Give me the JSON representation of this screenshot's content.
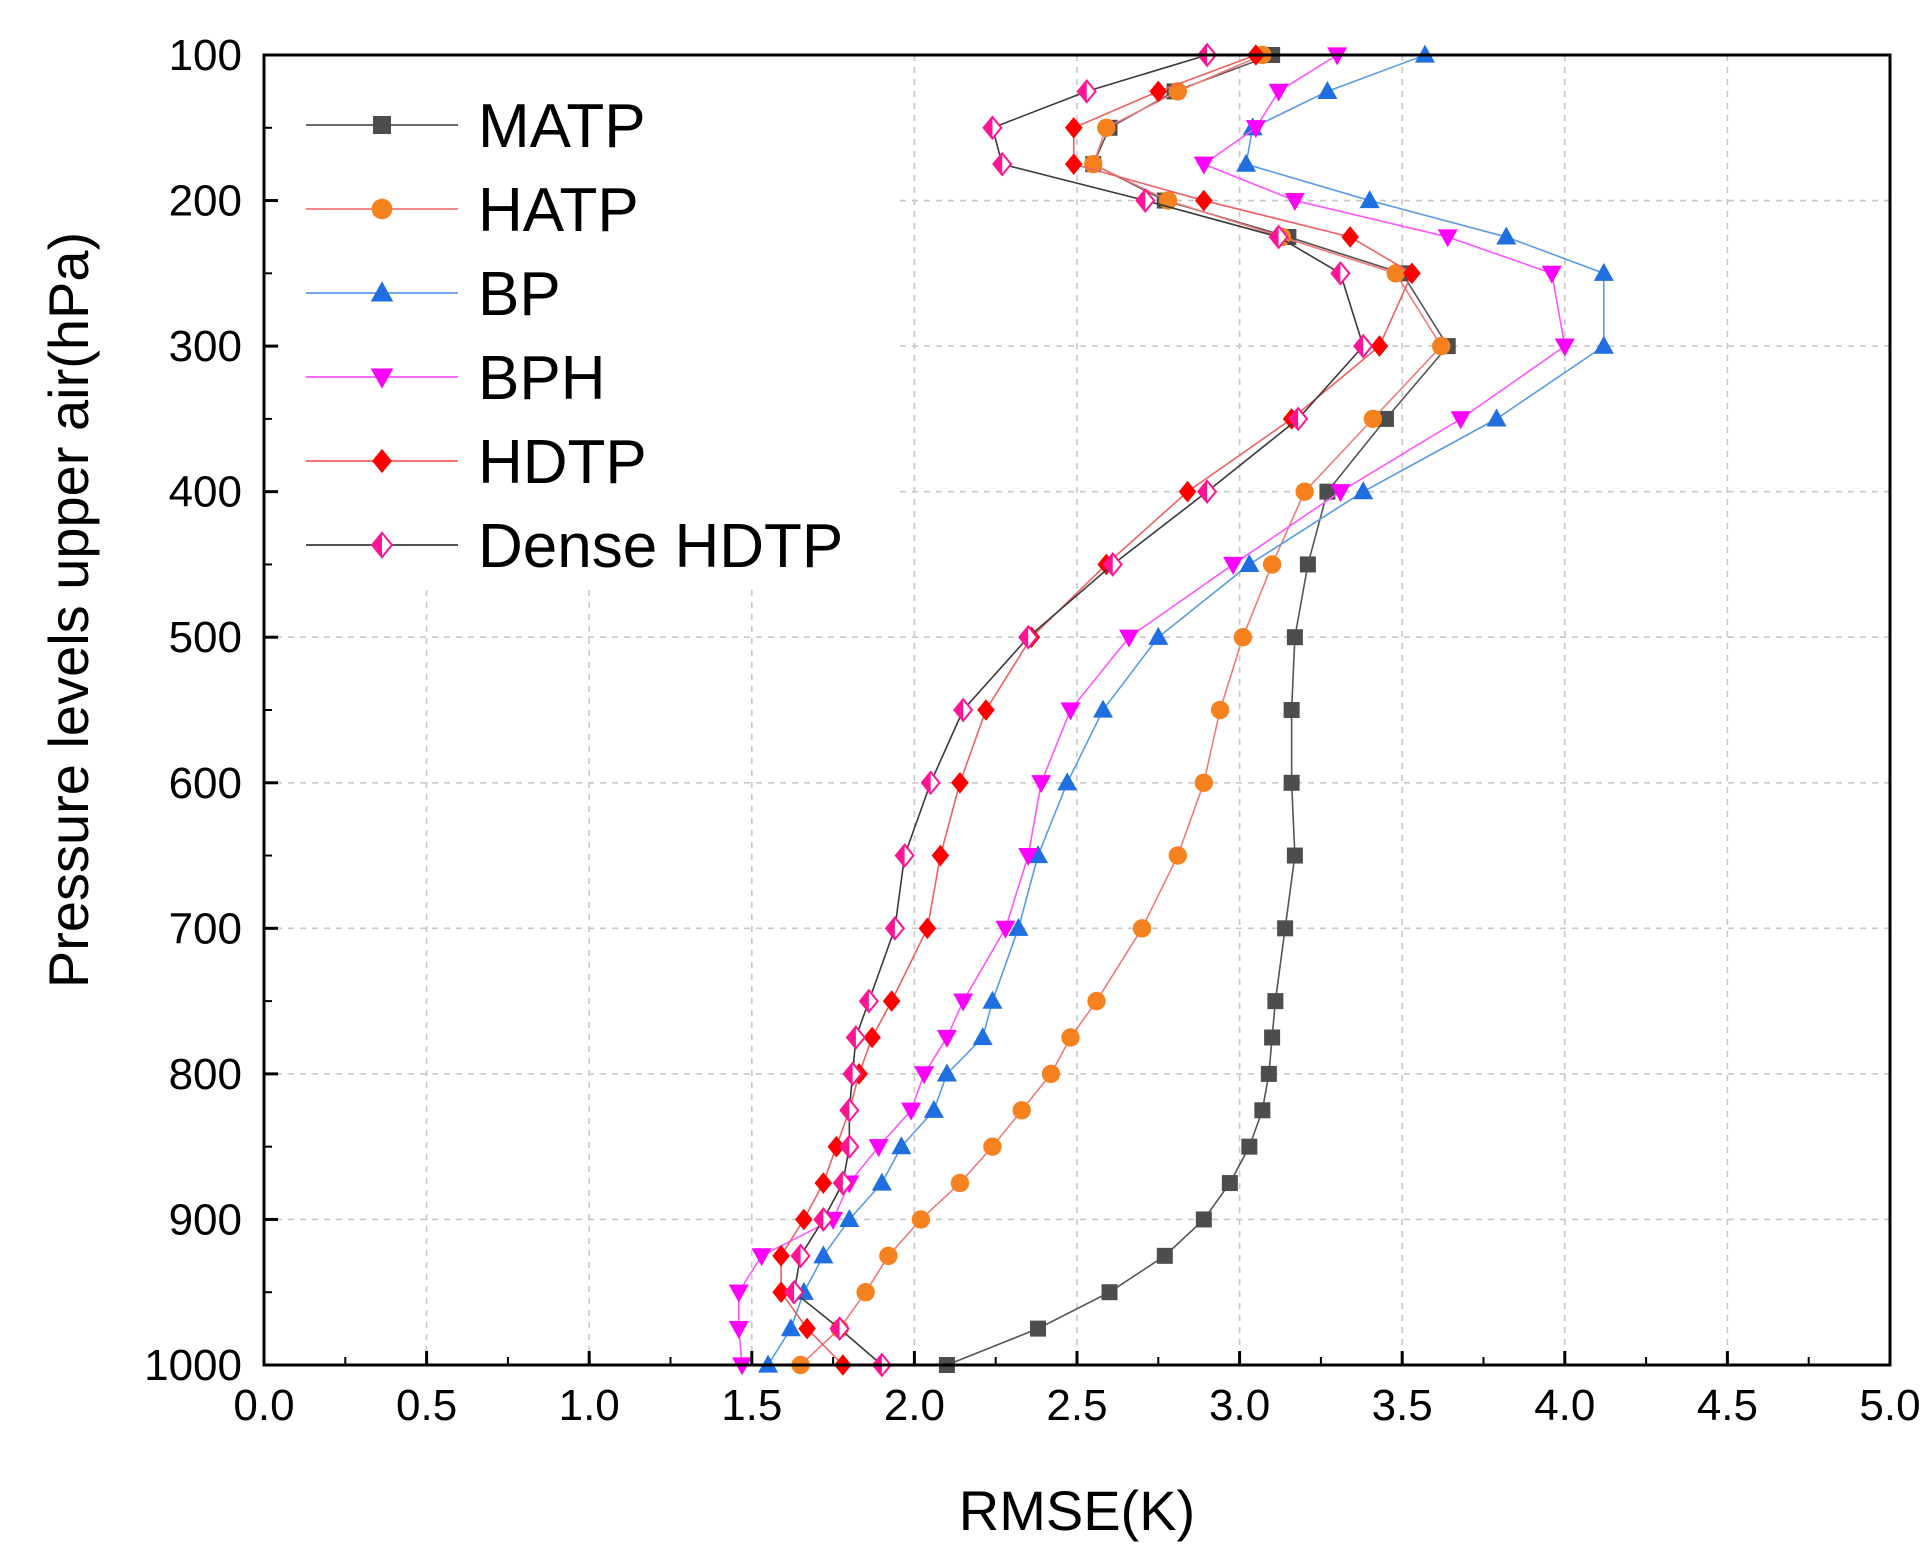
{
  "chart_data": {
    "type": "line",
    "title": "",
    "xlabel": "RMSE(K)",
    "ylabel": "Pressure levels upper air(hPa)",
    "xlim": [
      0.0,
      5.0
    ],
    "ylim": [
      100,
      1000
    ],
    "y_inverted": true,
    "grid": true,
    "legend_position": "top-left",
    "xticks": [
      "0.0",
      "0.5",
      "1.0",
      "1.5",
      "2.0",
      "2.5",
      "3.0",
      "3.5",
      "4.0",
      "4.5",
      "5.0"
    ],
    "yticks": [
      "100",
      "200",
      "300",
      "400",
      "500",
      "600",
      "700",
      "800",
      "900",
      "1000"
    ],
    "pressure_levels": [
      100,
      125,
      150,
      175,
      200,
      225,
      250,
      300,
      350,
      400,
      450,
      500,
      550,
      600,
      650,
      700,
      750,
      775,
      800,
      825,
      850,
      875,
      900,
      925,
      950,
      975,
      1000
    ],
    "series": [
      {
        "name": "MATP",
        "color": "#4d4d4d",
        "line_color": "#555555",
        "marker": "square",
        "values": [
          3.1,
          2.8,
          2.6,
          2.55,
          2.77,
          3.15,
          3.5,
          3.64,
          3.45,
          3.27,
          3.21,
          3.17,
          3.16,
          3.16,
          3.17,
          3.14,
          3.11,
          3.1,
          3.09,
          3.07,
          3.03,
          2.97,
          2.89,
          2.77,
          2.6,
          2.38,
          2.1
        ]
      },
      {
        "name": "HATP",
        "color": "#f5821f",
        "line_color": "#f07a7a",
        "marker": "circle",
        "values": [
          3.07,
          2.81,
          2.59,
          2.55,
          2.78,
          3.13,
          3.48,
          3.62,
          3.41,
          3.2,
          3.1,
          3.01,
          2.94,
          2.89,
          2.81,
          2.7,
          2.56,
          2.48,
          2.42,
          2.33,
          2.24,
          2.14,
          2.02,
          1.92,
          1.85,
          1.77,
          1.65
        ]
      },
      {
        "name": "BP",
        "color": "#1f6fe0",
        "line_color": "#5a9be8",
        "marker": "triangle-up",
        "values": [
          3.57,
          3.27,
          3.04,
          3.02,
          3.4,
          3.82,
          4.12,
          4.12,
          3.79,
          3.38,
          3.03,
          2.75,
          2.58,
          2.47,
          2.38,
          2.32,
          2.24,
          2.21,
          2.1,
          2.06,
          1.96,
          1.9,
          1.8,
          1.72,
          1.66,
          1.62,
          1.55
        ]
      },
      {
        "name": "BPH",
        "color": "#ff00ff",
        "line_color": "#ff55ff",
        "marker": "triangle-down",
        "values": [
          3.3,
          3.12,
          3.05,
          2.89,
          3.17,
          3.64,
          3.96,
          4.0,
          3.68,
          3.31,
          2.98,
          2.66,
          2.48,
          2.39,
          2.35,
          2.28,
          2.15,
          2.1,
          2.03,
          1.99,
          1.89,
          1.8,
          1.75,
          1.53,
          1.46,
          1.46,
          1.47
        ]
      },
      {
        "name": "HDTP",
        "color": "#ff0000",
        "line_color": "#f06060",
        "marker": "diamond",
        "values": [
          3.05,
          2.75,
          2.49,
          2.49,
          2.89,
          3.34,
          3.53,
          3.43,
          3.16,
          2.84,
          2.59,
          2.36,
          2.22,
          2.14,
          2.08,
          2.04,
          1.93,
          1.87,
          1.83,
          1.8,
          1.76,
          1.72,
          1.66,
          1.59,
          1.59,
          1.67,
          1.78
        ]
      },
      {
        "name": "Dense HDTP",
        "color": "#ff1493",
        "line_color": "#3a3a3a",
        "marker": "half-diamond",
        "values": [
          2.9,
          2.53,
          2.24,
          2.27,
          2.71,
          3.12,
          3.31,
          3.38,
          3.18,
          2.9,
          2.61,
          2.35,
          2.15,
          2.05,
          1.97,
          1.94,
          1.86,
          1.82,
          1.81,
          1.8,
          1.8,
          1.78,
          1.72,
          1.65,
          1.63,
          1.77,
          1.9
        ]
      }
    ]
  }
}
